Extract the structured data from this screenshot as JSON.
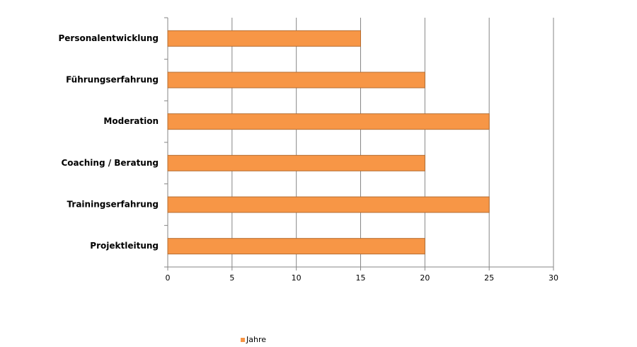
{
  "chart_data": {
    "type": "bar",
    "orientation": "horizontal",
    "categories": [
      "Personalentwicklung",
      "Führungserfahrung",
      "Moderation",
      "Coaching / Beratung",
      "Trainingserfahrung",
      "Projektleitung"
    ],
    "series": [
      {
        "name": "Jahre",
        "color": "#f79646",
        "values": [
          15,
          20,
          25,
          20,
          25,
          20
        ]
      }
    ],
    "xlim": [
      0,
      30
    ],
    "xticks": [
      0,
      5,
      10,
      15,
      20,
      25,
      30
    ],
    "grid": true,
    "legend": "bottom"
  }
}
